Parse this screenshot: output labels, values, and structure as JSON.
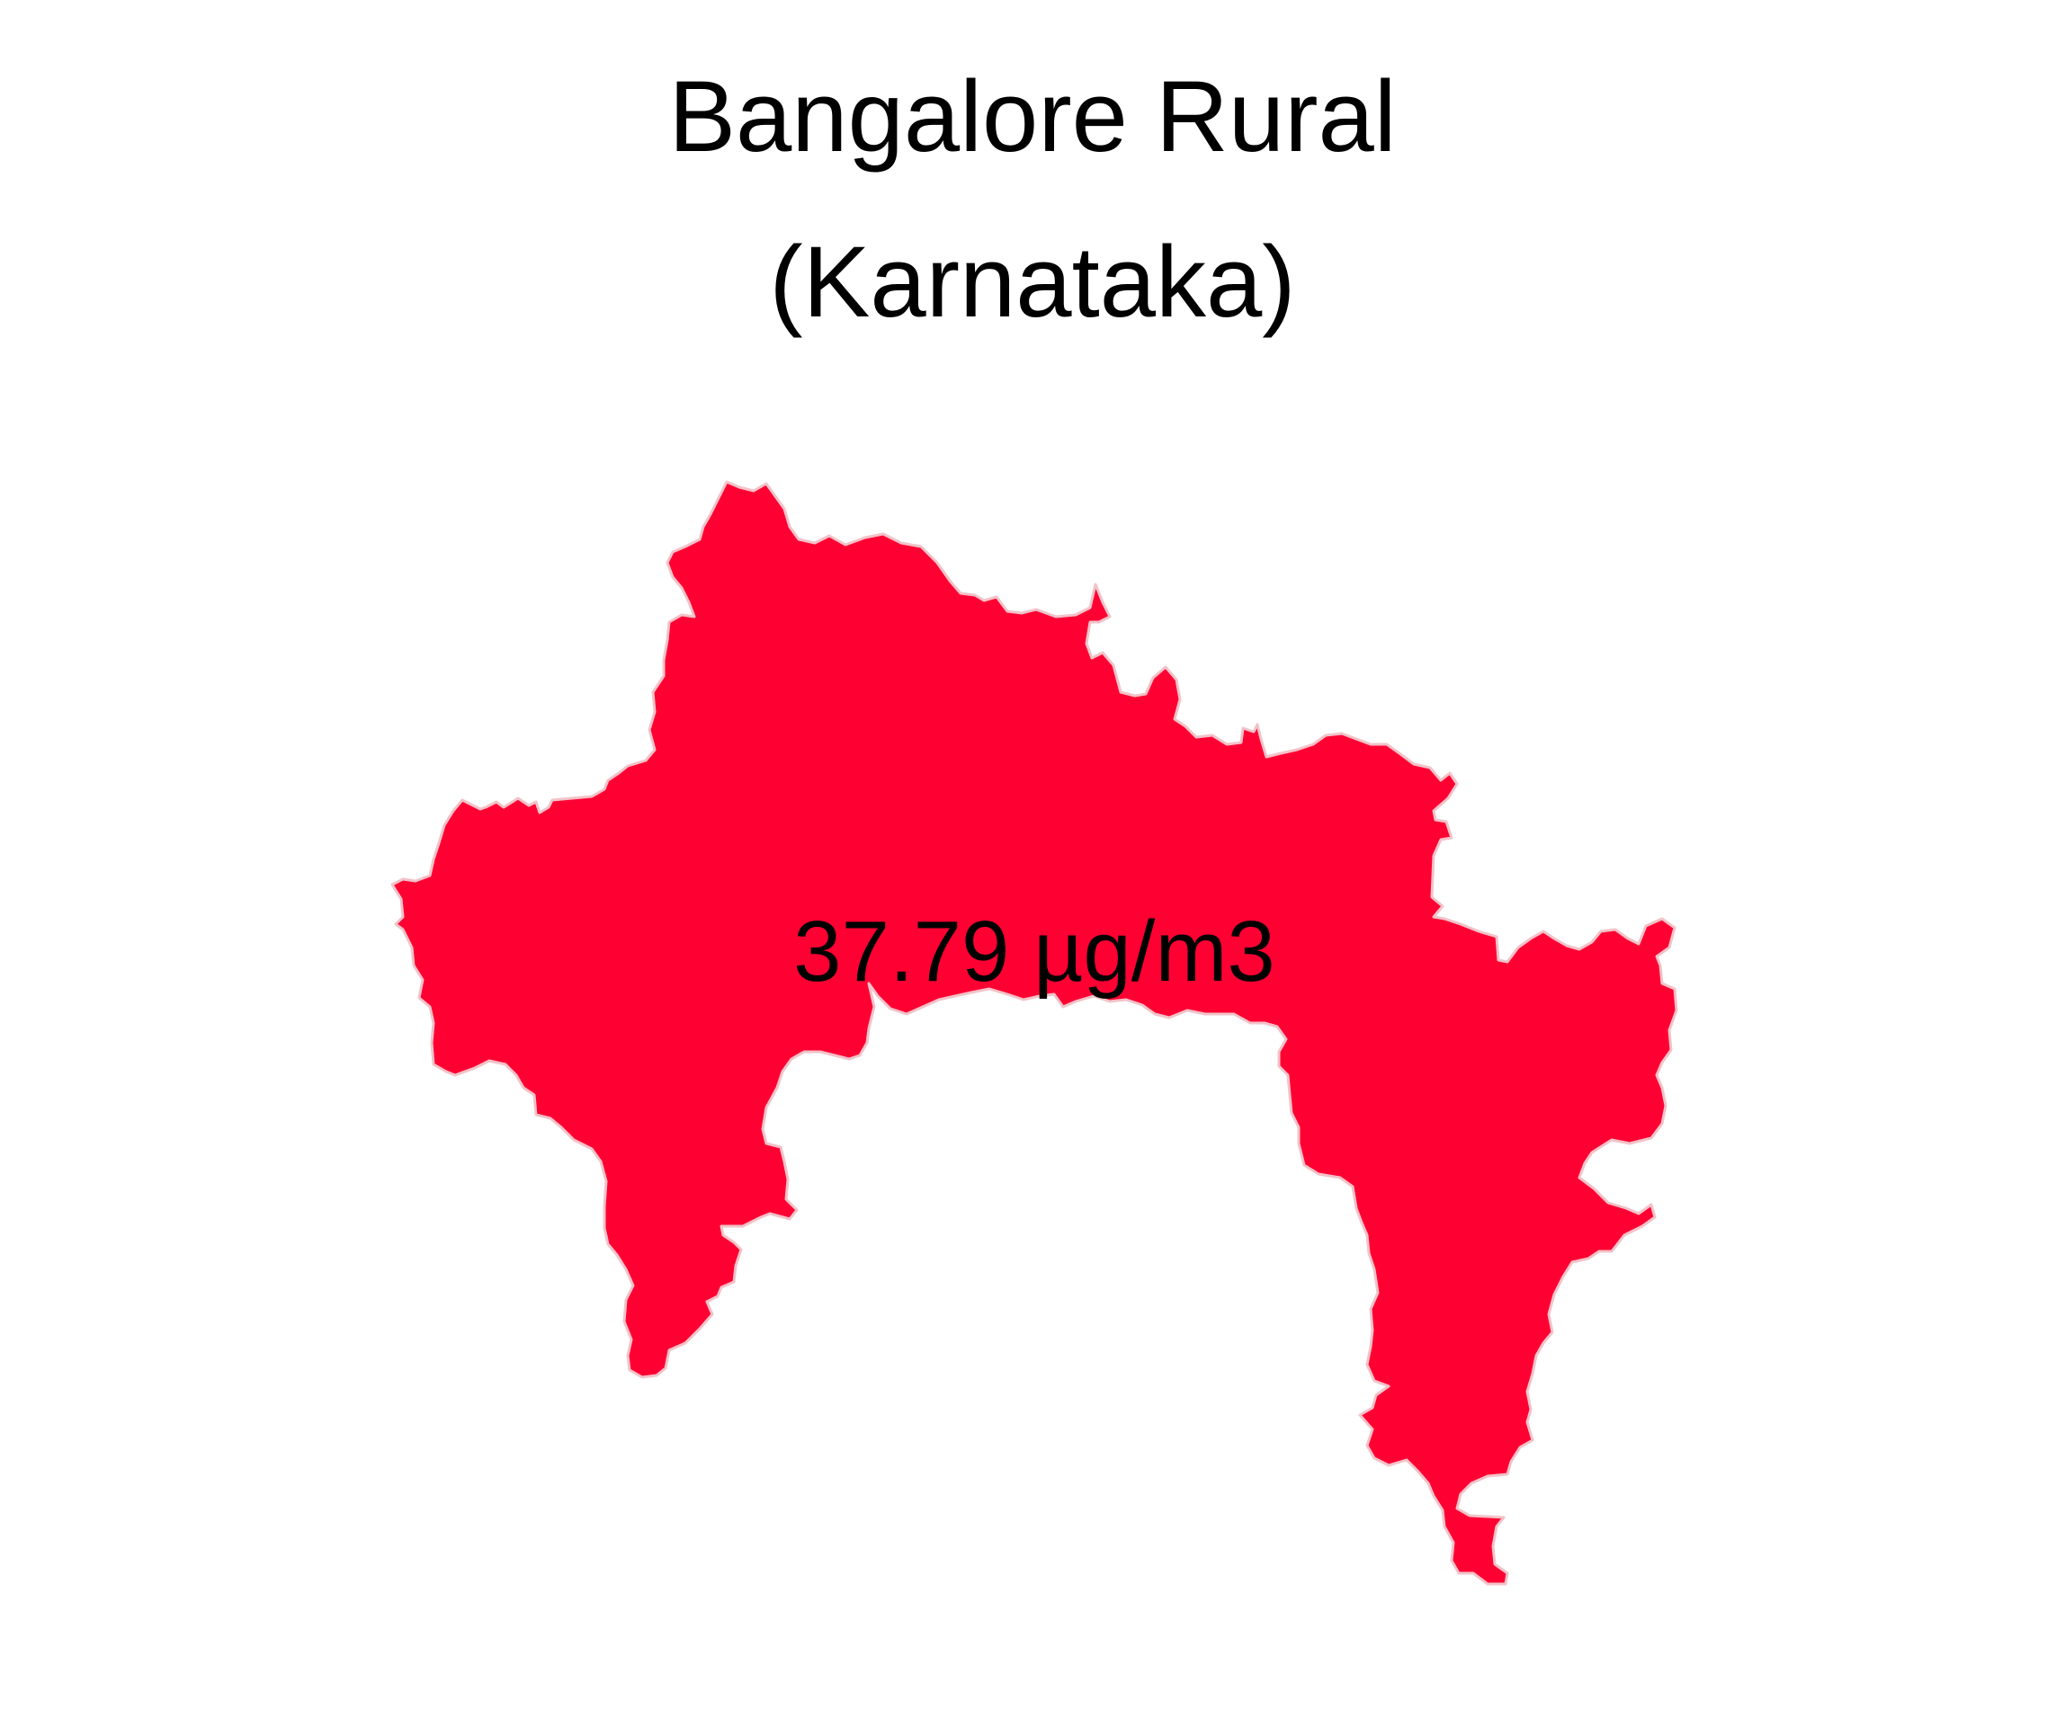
{
  "map": {
    "title_line1": "Bangalore Rural",
    "title_line2": "(Karnataka)",
    "region_name": "Bangalore Rural",
    "value_label": "37.79 µg/m3",
    "fill_color": "#FF0033",
    "border_color": "#F2C2C8"
  }
}
